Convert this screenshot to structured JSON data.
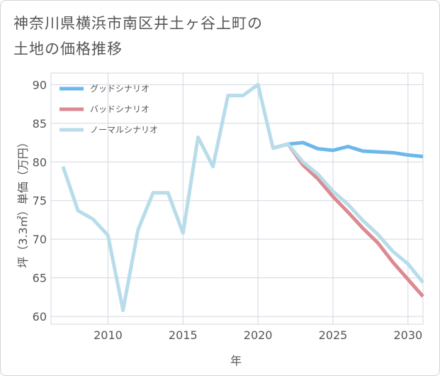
{
  "title_lines": [
    "神奈川県横浜市南区井土ヶ谷上町の",
    "土地の価格推移"
  ],
  "chart_data": {
    "type": "line",
    "title": "神奈川県横浜市南区井土ヶ谷上町の土地の価格推移",
    "xlabel": "年",
    "ylabel": "坪（3.3㎡）単価（万円）",
    "xlim": [
      2006.2,
      2031
    ],
    "ylim": [
      59,
      91.5
    ],
    "xticks": [
      2010,
      2015,
      2020,
      2025,
      2030
    ],
    "yticks": [
      60,
      65,
      70,
      75,
      80,
      85,
      90
    ],
    "legend_position": "top-left",
    "series": [
      {
        "name": "グッドシナリオ",
        "color": "#6cb8ea",
        "x": [
          2021,
          2022,
          2023,
          2024,
          2025,
          2026,
          2027,
          2028,
          2029,
          2030,
          2031
        ],
        "y": [
          81.8,
          82.3,
          82.5,
          81.7,
          81.5,
          82.0,
          81.4,
          81.3,
          81.2,
          80.9,
          80.7
        ]
      },
      {
        "name": "バッドシナリオ",
        "color": "#dc8a92",
        "x": [
          2021,
          2022,
          2023,
          2024,
          2025,
          2026,
          2027,
          2028,
          2029,
          2030,
          2031
        ],
        "y": [
          81.8,
          82.3,
          79.6,
          77.8,
          75.5,
          73.5,
          71.4,
          69.5,
          67.0,
          64.8,
          62.6
        ]
      },
      {
        "name": "ノーマルシナリオ",
        "color": "#b8dcea",
        "x": [
          2007,
          2008,
          2009,
          2010,
          2011,
          2012,
          2013,
          2014,
          2015,
          2016,
          2017,
          2018,
          2019,
          2020,
          2021,
          2022,
          2023,
          2024,
          2025,
          2026,
          2027,
          2028,
          2029,
          2030,
          2031
        ],
        "y": [
          79.4,
          73.7,
          72.6,
          70.5,
          60.8,
          71.2,
          76.0,
          76.0,
          70.8,
          83.2,
          79.4,
          88.6,
          88.6,
          90.0,
          81.8,
          82.3,
          80.0,
          78.4,
          76.2,
          74.5,
          72.4,
          70.6,
          68.4,
          66.8,
          64.4
        ]
      }
    ]
  }
}
